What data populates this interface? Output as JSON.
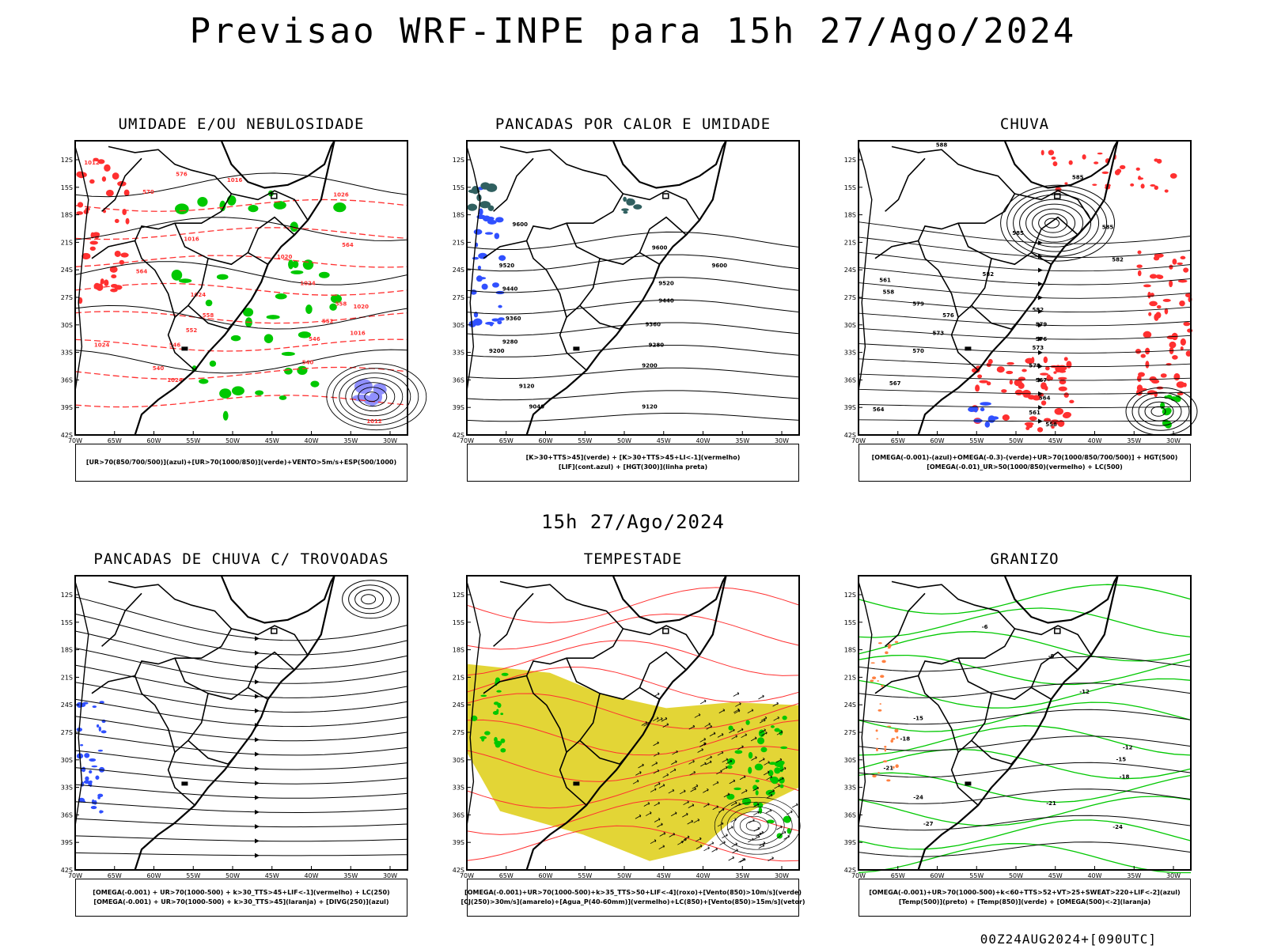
{
  "title": "Previsao WRF-INPE  para 15h 27/Ago/2024",
  "middle_date": "15h 27/Ago/2024",
  "footer": "00Z24AUG2024+[090UTC]",
  "axes": {
    "lat_labels": [
      "12S",
      "15S",
      "18S",
      "21S",
      "24S",
      "27S",
      "30S",
      "33S",
      "36S",
      "39S",
      "42S"
    ],
    "lon_labels": [
      "70W",
      "65W",
      "60W",
      "55W",
      "50W",
      "45W",
      "40W",
      "35W",
      "30W"
    ]
  },
  "panels": [
    {
      "title": "UMIDADE E/OU NEBULOSIDADE",
      "caption": [
        "[UR>70(850/700/500)](azul)+[UR>70(1000/850)](verde)+VENTO>5m/s+ESP(500/1000)"
      ],
      "contour_labels": [
        "1012",
        "1016",
        "1016",
        "1020",
        "1024",
        "1024",
        "1020",
        "1016",
        "1024",
        "1012",
        "1026",
        "1024",
        "570",
        "576",
        "564",
        "558",
        "552",
        "546",
        "540",
        "564",
        "558",
        "552",
        "546",
        "540"
      ]
    },
    {
      "title": "PANCADAS POR CALOR E UMIDADE",
      "caption": [
        "[K>30+TTS>45](verde) + [K>30+TTS>45+LI<-1](vermelho)",
        "[LIF](cont.azul) + [HGT(300)](linha preta)"
      ],
      "contour_labels": [
        "9600",
        "9520",
        "9440",
        "9360",
        "9280",
        "9200",
        "9120",
        "9040",
        "9600",
        "9520",
        "9440",
        "9360",
        "9280",
        "9200",
        "9120",
        "9600"
      ]
    },
    {
      "title": "CHUVA",
      "caption": [
        "[OMEGA(-0.001)-(azul)+OMEGA(-0.3)-(verde)+UR>70(1000/850/700/500)] + HGT(500)",
        "[OMEGA(-0.01)_UR>50(1000/850)(vermelho) + LC(500)"
      ],
      "contour_labels": [
        "588",
        "585",
        "585",
        "582",
        "585",
        "582",
        "579",
        "576",
        "573",
        "570",
        "567",
        "564",
        "561",
        "558",
        "582",
        "579",
        "576",
        "573",
        "570",
        "567",
        "564",
        "561",
        "558"
      ]
    },
    {
      "title": "PANCADAS DE CHUVA C/ TROVOADAS",
      "caption": [
        "[OMEGA(-0.001) + UR>70(1000-500) + k>30_TTS>45+LIF<-1](vermelho) + LC(250)",
        "[OMEGA(-0.001) + UR>70(1000-500) + k>30_TTS>45](laranja) + [DIVG(250)](azul)"
      ],
      "contour_labels": []
    },
    {
      "title": "TEMPESTADE",
      "caption": [
        "[OMEGA(-0.001)+UR>70(1000-500)+k>35_TTS>50+LIF<-4](roxo)+[Vento(850)>10m/s](verde)",
        "[CJ(250)>30m/s](amarelo)+[Agua_P(40-60mm)](vermelho)+LC(850)+[Vento(850)>15m/s](vetor)"
      ],
      "contour_labels": []
    },
    {
      "title": "GRANIZO",
      "caption": [
        "[OMEGA(-0.001)+UR>70(1000-500)+k<60+TTS>52+VT>25+SWEAT>220+LIF<-2](azul)",
        "[Temp(500)](preto) + [Temp(850)](verde) + [OMEGA(500)<-2](laranja)"
      ],
      "contour_labels": [
        "-6",
        "-9",
        "-12",
        "-15",
        "-18",
        "-21",
        "-24",
        "-27",
        "-12",
        "-15",
        "-18",
        "-21",
        "-24"
      ]
    }
  ],
  "colors": {
    "humidity_green": "#00c800",
    "red": "#ff3030",
    "blue": "#3050ff",
    "lavender": "#9090ff",
    "yellow": "#e0d020",
    "black": "#000000"
  }
}
